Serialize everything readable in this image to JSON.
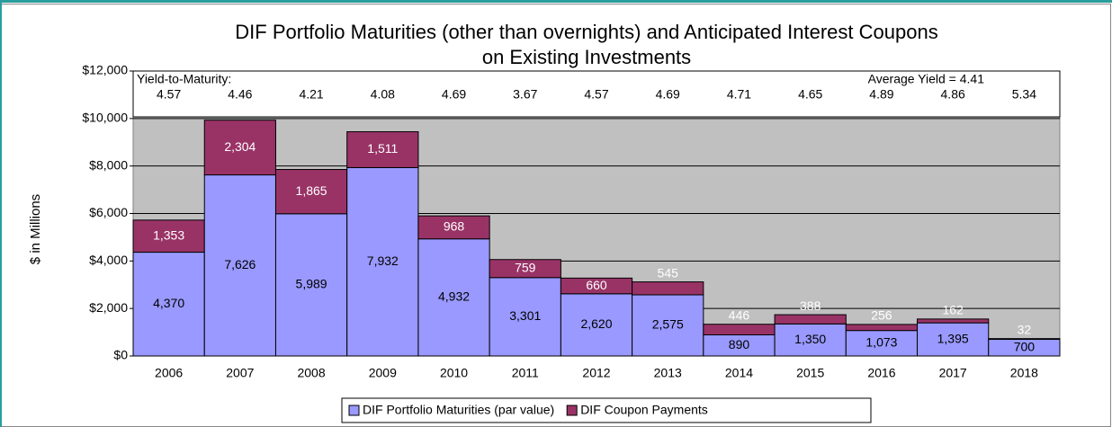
{
  "chart_data": {
    "type": "bar",
    "stacked": true,
    "title": [
      "DIF Portfolio Maturities (other than overnights) and Anticipated Interest Coupons",
      "on Existing Investments"
    ],
    "y_label": "$ in Millions",
    "categories": [
      "2006",
      "2007",
      "2008",
      "2009",
      "2010",
      "2011",
      "2012",
      "2013",
      "2014",
      "2015",
      "2016",
      "2017",
      "2018"
    ],
    "series": [
      {
        "name": "DIF Portfolio Maturities (par value)",
        "color": "#9999ff",
        "values": [
          4370,
          7626,
          5989,
          7932,
          4932,
          3301,
          2620,
          2575,
          890,
          1350,
          1073,
          1395,
          700
        ],
        "value_labels": [
          "4,370",
          "7,626",
          "5,989",
          "7,932",
          "4,932",
          "3,301",
          "2,620",
          "2,575",
          "890",
          "1,350",
          "1,073",
          "1,395",
          "700"
        ]
      },
      {
        "name": "DIF Coupon Payments",
        "color": "#993366",
        "values": [
          1353,
          2304,
          1865,
          1511,
          968,
          759,
          660,
          545,
          446,
          388,
          256,
          162,
          32
        ],
        "value_labels": [
          "1,353",
          "2,304",
          "1,865",
          "1,511",
          "968",
          "759",
          "660",
          "545",
          "446",
          "388",
          "256",
          "162",
          "32"
        ]
      }
    ],
    "ylim": [
      0,
      12000
    ],
    "yticks": [
      {
        "value": 0,
        "label": "$0"
      },
      {
        "value": 2000,
        "label": "$2,000"
      },
      {
        "value": 4000,
        "label": "$4,000"
      },
      {
        "value": 6000,
        "label": "$6,000"
      },
      {
        "value": 8000,
        "label": "$8,000"
      },
      {
        "value": 10000,
        "label": "$10,000"
      },
      {
        "value": 12000,
        "label": "$12,000"
      }
    ],
    "grid": true,
    "legend_position": "bottom",
    "yield_box": {
      "label": "Yield-to-Maturity:",
      "average": "Average Yield = 4.41",
      "values": [
        4.57,
        4.46,
        4.21,
        4.08,
        4.69,
        3.67,
        4.57,
        4.69,
        4.71,
        4.65,
        4.89,
        4.86,
        5.34
      ]
    }
  }
}
